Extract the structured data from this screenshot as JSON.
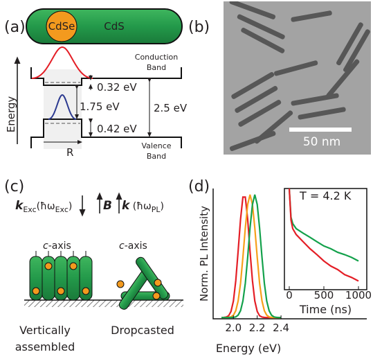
{
  "panel_labels": [
    "(a)",
    "(b)",
    "(c)",
    "(d)"
  ],
  "panel_a": {
    "core": "CdSe",
    "shell": "CdS",
    "conduction_band": [
      "Conduction",
      "Band"
    ],
    "valence_band": [
      "Valence",
      "Band"
    ],
    "axis_label": "Energy",
    "offset_cb": "0.32 eV",
    "gap_core": "1.75 eV",
    "gap_shell": "2.5 eV",
    "offset_vb": "0.42 eV",
    "radius": "R"
  },
  "panel_b": {
    "scale_bar": "50 nm"
  },
  "panel_c": {
    "k_exc": [
      "k",
      "Exc",
      "(ħω",
      "Exc",
      ")"
    ],
    "field": "B",
    "k_pl": [
      "k",
      " (ħω",
      "PL",
      ")"
    ],
    "c_axis_labels": [
      [
        "c",
        "-axis"
      ],
      [
        "c",
        "-axis"
      ]
    ],
    "captions": [
      [
        "Vertically",
        "assembled"
      ],
      [
        "Dropcasted"
      ]
    ]
  },
  "chart_data": [
    {
      "type": "line",
      "xlabel": "Energy (eV)",
      "ylabel": "Norm. PL Intensity",
      "xlim": [
        1.83,
        3.12
      ],
      "ylim": [
        -0.01,
        1.05
      ],
      "xticks": [
        {
          "value": 2,
          "label": "2.0"
        },
        2.2,
        2.4
      ],
      "x": [
        1.9,
        1.92,
        1.94,
        1.96,
        1.98,
        2.0,
        2.02,
        2.04,
        2.06,
        2.08,
        2.1,
        2.12,
        2.14,
        2.16,
        2.18,
        2.2,
        2.22,
        2.24,
        2.26,
        2.28,
        2.3,
        2.32,
        2.34,
        2.36,
        2.38,
        2.4
      ],
      "series": [
        {
          "color": "#e41e26",
          "values": [
            0,
            0.001,
            0.004,
            0.015,
            0.05,
            0.135,
            0.3,
            0.54,
            0.8,
            0.98,
            0.98,
            0.8,
            0.54,
            0.3,
            0.135,
            0.05,
            0.015,
            0.004,
            0.001,
            0,
            0,
            0,
            0,
            0,
            0,
            0
          ]
        },
        {
          "color": "#f6a01a",
          "values": [
            0,
            0,
            0,
            0.002,
            0.006,
            0.02,
            0.056,
            0.135,
            0.28,
            0.49,
            0.73,
            0.92,
            1,
            0.92,
            0.73,
            0.49,
            0.28,
            0.135,
            0.056,
            0.02,
            0.006,
            0.002,
            0,
            0,
            0,
            0
          ]
        },
        {
          "color": "#13a14b",
          "values": [
            0,
            0,
            0,
            0,
            0,
            0.002,
            0.006,
            0.02,
            0.056,
            0.135,
            0.28,
            0.49,
            0.73,
            0.92,
            1,
            0.92,
            0.73,
            0.49,
            0.28,
            0.135,
            0.056,
            0.02,
            0.006,
            0.002,
            0,
            0
          ]
        }
      ]
    },
    {
      "type": "line",
      "xlabel": "Time (ns)",
      "annotation": "T = 4.2 K",
      "log_y": true,
      "xlim": [
        -70,
        1120
      ],
      "ylim": [
        0.0003,
        1
      ],
      "xticks": [
        0,
        500,
        1000
      ],
      "x": [
        0,
        25,
        50,
        100,
        200,
        300,
        400,
        500,
        600,
        700,
        800,
        900,
        1000
      ],
      "series": [
        {
          "color": "#13a14b",
          "values": [
            1,
            0.1,
            0.06,
            0.04,
            0.028,
            0.02,
            0.014,
            0.01,
            0.008,
            0.006,
            0.005,
            0.004,
            0.003
          ]
        },
        {
          "color": "#e41e26",
          "values": [
            1,
            0.08,
            0.04,
            0.025,
            0.014,
            0.008,
            0.005,
            0.003,
            0.002,
            0.0015,
            0.001,
            0.0008,
            0.0006
          ]
        }
      ]
    }
  ]
}
